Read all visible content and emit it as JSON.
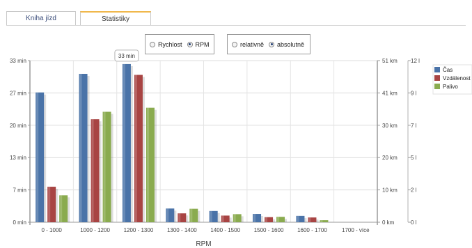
{
  "tabs": [
    {
      "label": "Kniha jízd"
    },
    {
      "label": "Statistiky"
    }
  ],
  "mode_toggle": {
    "options": [
      {
        "label": "Rychlost",
        "selected": false
      },
      {
        "label": "RPM",
        "selected": true
      }
    ]
  },
  "scale_toggle": {
    "options": [
      {
        "label": "relativně",
        "selected": false
      },
      {
        "label": "absolutně",
        "selected": true
      }
    ]
  },
  "tooltip": {
    "text": "33 min"
  },
  "chart_data": {
    "type": "bar",
    "title": "",
    "xlabel": "RPM",
    "categories": [
      "0 - 1000",
      "1000 - 1200",
      "1200 - 1300",
      "1300 - 1400",
      "1400 - 1500",
      "1500 - 1600",
      "1600 - 1700",
      "1700 - více"
    ],
    "series": [
      {
        "name": "Čas",
        "axis": "time",
        "unit": "min",
        "color": "#4a73a8",
        "values": [
          26.5,
          30.3,
          32.3,
          2.8,
          2.3,
          1.7,
          1.3,
          0
        ]
      },
      {
        "name": "Vzdálenost",
        "axis": "distance",
        "unit": "km",
        "color": "#a84443",
        "values": [
          11.2,
          32.5,
          46.5,
          2.8,
          2.1,
          1.6,
          1.5,
          0
        ]
      },
      {
        "name": "Palivo",
        "axis": "fuel",
        "unit": "l",
        "color": "#8aab4f",
        "values": [
          2.0,
          8.2,
          8.5,
          1.0,
          0.6,
          0.4,
          0.15,
          0
        ]
      }
    ],
    "axes": {
      "time": {
        "ticks": [
          "0 min",
          "7 min",
          "13 min",
          "20 min",
          "27 min",
          "33 min"
        ],
        "range": [
          0,
          33
        ]
      },
      "distance": {
        "ticks": [
          "0 km",
          "10 km",
          "20 km",
          "30 km",
          "41 km",
          "51 km"
        ],
        "range": [
          0,
          51
        ]
      },
      "fuel": {
        "ticks": [
          "0 l",
          "2 l",
          "5 l",
          "7 l",
          "9 l",
          "12 l"
        ],
        "range": [
          0,
          12
        ]
      }
    },
    "grid": true,
    "legend_position": "right"
  }
}
